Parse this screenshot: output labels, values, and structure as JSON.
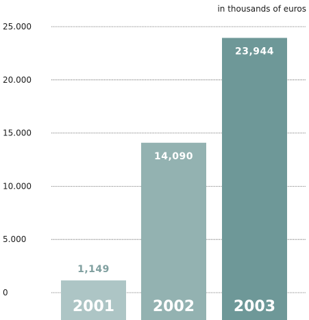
{
  "chart_data": {
    "type": "bar",
    "unit_label": "in thousands of euros",
    "categories": [
      "2001",
      "2002",
      "2003"
    ],
    "values": [
      1149,
      14090,
      23944
    ],
    "value_labels": [
      "1,149",
      "14,090",
      "23,944"
    ],
    "ylim": [
      0,
      25000
    ],
    "yticks": [
      0,
      5000,
      10000,
      15000,
      20000,
      25000
    ],
    "ytick_labels": [
      "0",
      "5.000",
      "10.000",
      "15.000",
      "20.000",
      "25.000"
    ],
    "grid": true,
    "colors": {
      "bars": [
        "#adc5c5",
        "#93b2b1",
        "#6e9898"
      ],
      "value_text_small_bar": "#7f9f9f",
      "value_text_inside": "#ffffff"
    }
  }
}
